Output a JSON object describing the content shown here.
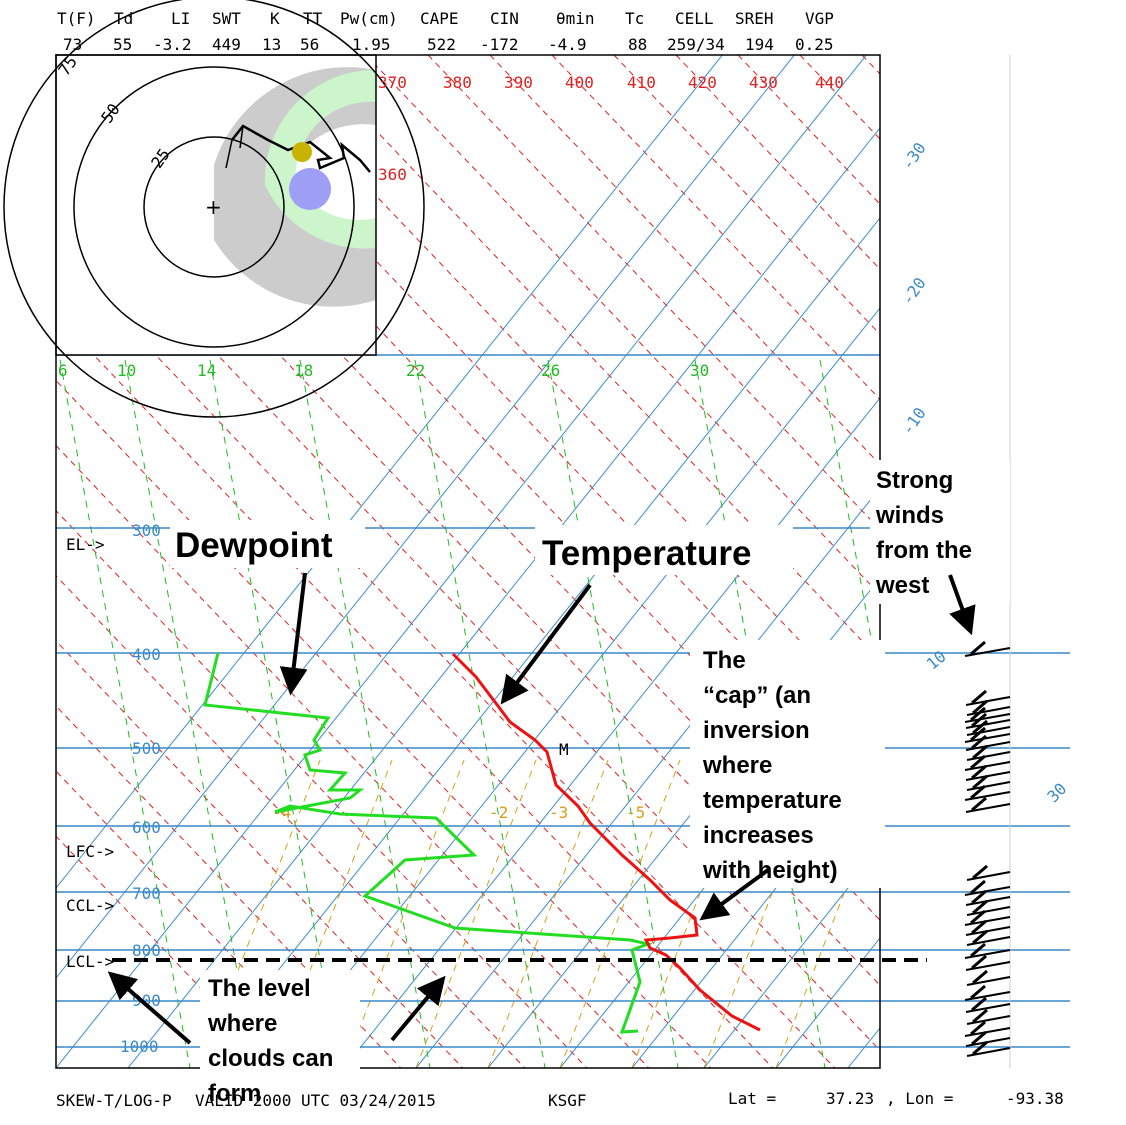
{
  "header": {
    "labels": [
      "T(F)",
      "Td",
      "LI",
      "SWT",
      "K",
      "TT",
      "Pw(cm)",
      "CAPE",
      "CIN",
      "θmin",
      "Tc",
      "CELL",
      "SREH",
      "VGP"
    ],
    "values": [
      "73",
      "55",
      "-3.2",
      "449",
      "13",
      "56",
      "1.95",
      "522",
      "-172",
      "-4.9",
      "88",
      "259/34",
      "194",
      "0.25"
    ]
  },
  "footer": {
    "title": "SKEW-T/LOG-P",
    "valid": "VALID 2000 UTC 03/24/2015",
    "station": "KSGF",
    "lat_label": "Lat =",
    "lat": "37.23",
    "lon_label": ", Lon =",
    "lon": "-93.38"
  },
  "diagram": {
    "pressure_labels": [
      "300",
      "400",
      "500",
      "600",
      "700",
      "800",
      "900",
      "1000"
    ],
    "theta_labels": [
      "370",
      "380",
      "390",
      "400",
      "410",
      "420",
      "430",
      "440"
    ],
    "theta_360": "360",
    "mixing_ratio_labels": [
      "6",
      "10",
      "14",
      "18",
      "22",
      "26",
      "30"
    ],
    "isotherm_labels_right": [
      "-30",
      "-20",
      "-10"
    ],
    "isotherm_labels_low": [
      "10",
      "30"
    ],
    "lifted_index_labels": [
      "-4",
      "-2",
      "-3",
      "-5"
    ],
    "level_labels": {
      "el": "EL->",
      "lfc": "LFC->",
      "ccl": "CCL->",
      "lcl": "LCL->"
    },
    "mean_marker": "M",
    "hodograph_rings": [
      "75",
      "50",
      "25"
    ],
    "colors": {
      "isobar": "#3a8ac9",
      "isotherm": "#3a8ac9",
      "dry_adiabat": "#e02020",
      "mixing_ratio": "#22bb22",
      "temperature": "#ee1111",
      "dewpoint": "#22dd22",
      "parcel": "#d4a017"
    }
  },
  "annotations": {
    "dewpoint": "Dewpoint",
    "temperature": "Temperature",
    "winds": [
      "Strong",
      "winds",
      "from the",
      "west"
    ],
    "cap": [
      "The",
      "“cap” (an",
      "inversion",
      "where",
      "temperature",
      "increases",
      "with height)"
    ],
    "clouds": [
      "The level",
      "where",
      "clouds can",
      "form"
    ]
  }
}
